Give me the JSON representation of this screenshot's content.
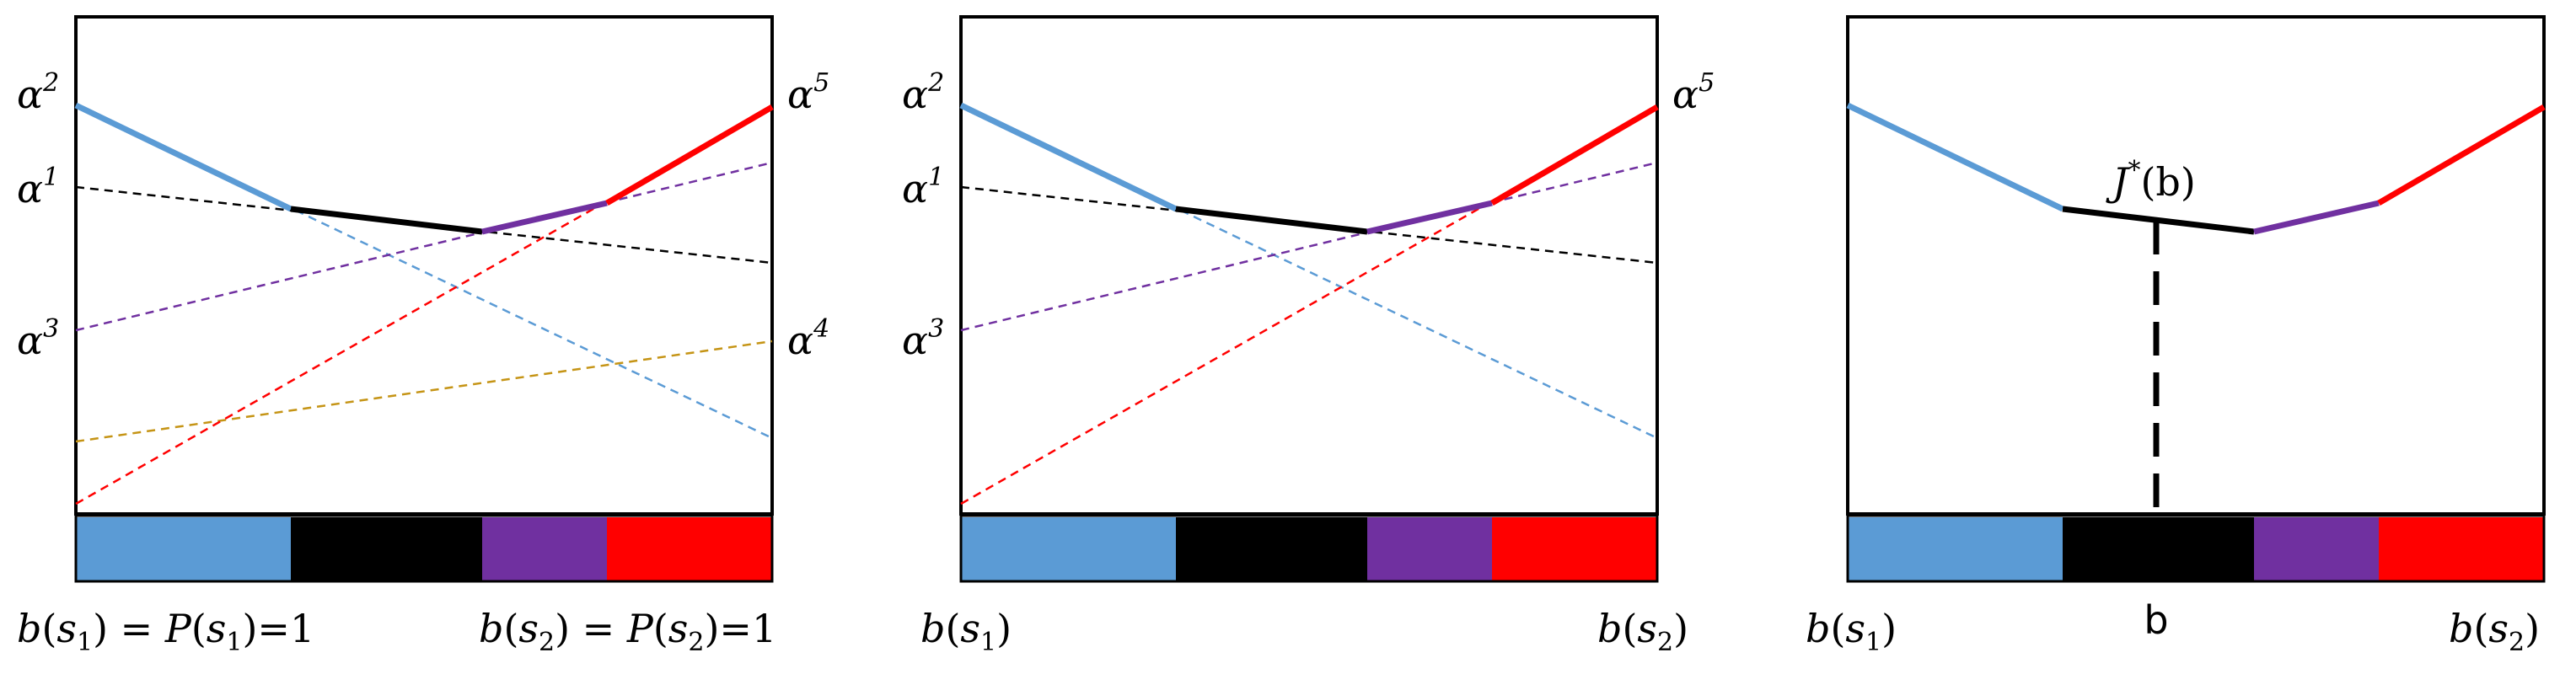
{
  "colors": {
    "blue": "#5b9bd5",
    "black": "#000000",
    "purple": "#7030a0",
    "red": "#ff0000",
    "gold": "#c59415"
  },
  "panel1": {
    "alpha_labels": [
      {
        "base": "α",
        "sup": "2"
      },
      {
        "base": "α",
        "sup": "1"
      },
      {
        "base": "α",
        "sup": "3"
      },
      {
        "base": "α",
        "sup": "4"
      },
      {
        "base": "α",
        "sup": "5"
      }
    ],
    "left_axis": {
      "b": "b",
      "lp": "(",
      "s": "s",
      "sub": "1",
      "rp": ")",
      "eq1": " = ",
      "P": "P",
      "lp2": "(",
      "s2": "s",
      "sub2": "1",
      "rp2": ")",
      "eq2": "=1"
    },
    "right_axis": {
      "b": "b",
      "lp": "(",
      "s": "s",
      "sub": "2",
      "rp": ")",
      "eq1": " = ",
      "P": "P",
      "lp2": "(",
      "s2": "s",
      "sub2": "2",
      "rp2": ")",
      "eq2": "=1"
    }
  },
  "panel2": {
    "alpha_labels": [
      {
        "base": "α",
        "sup": "2"
      },
      {
        "base": "α",
        "sup": "1"
      },
      {
        "base": "α",
        "sup": "3"
      },
      {
        "base": "α",
        "sup": "5"
      }
    ],
    "left_axis": {
      "b": "b",
      "lp": "(",
      "s": "s",
      "sub": "1",
      "rp": ")"
    },
    "right_axis": {
      "b": "b",
      "lp": "(",
      "s": "s",
      "sub": "2",
      "rp": ")"
    }
  },
  "panel3": {
    "value_label": {
      "J": "J",
      "sup": "*",
      "arg": "(b)"
    },
    "left_axis": {
      "b": "b",
      "lp": "(",
      "s": "s",
      "sub": "1",
      "rp": ")"
    },
    "right_axis": {
      "b": "b",
      "lp": "(",
      "s": "s",
      "sub": "2",
      "rp": ")"
    },
    "b_marker": "b"
  }
}
